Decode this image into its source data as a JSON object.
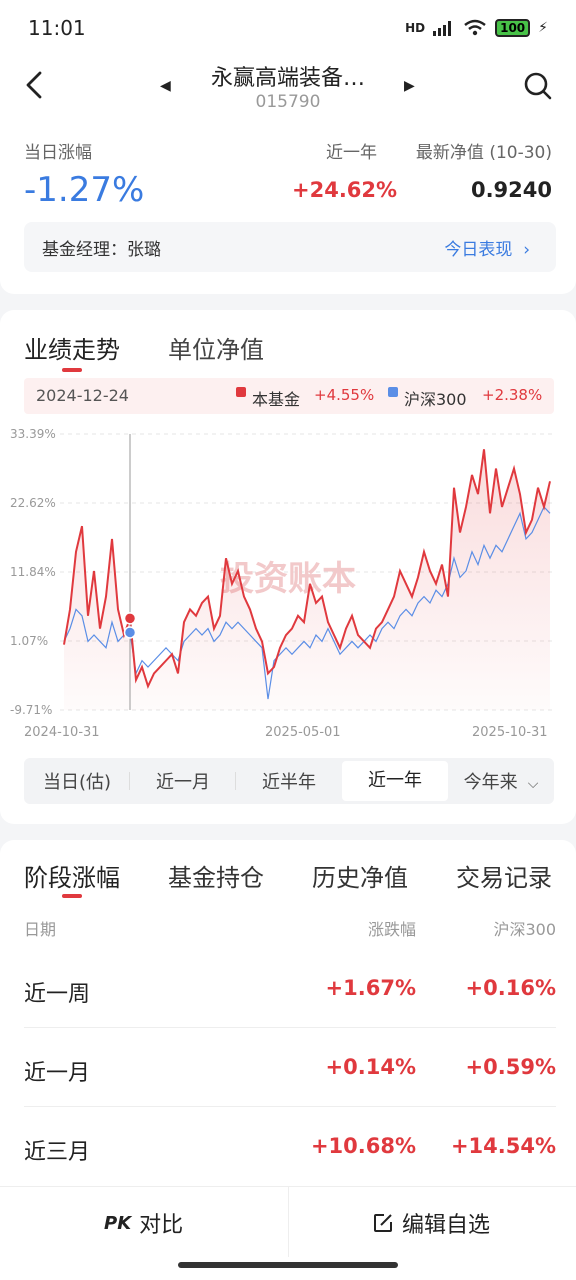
{
  "status": {
    "time": "11:01",
    "signal": "HD",
    "battery": "100"
  },
  "header": {
    "title": "永赢高端装备…",
    "code": "015790"
  },
  "summary": {
    "daily_label": "当日涨幅",
    "daily_value": "-1.27%",
    "year_label": "近一年",
    "year_value": "+24.62%",
    "nav_label": "最新净值 (10-30)",
    "nav_value": "0.9240",
    "manager": "基金经理：张璐",
    "today_link": "今日表现"
  },
  "chart_tabs": [
    "业绩走势",
    "单位净值"
  ],
  "legend": {
    "date": "2024-12-24",
    "fund_label": "本基金",
    "fund_value": "+4.55%",
    "index_label": "沪深300",
    "index_value": "+2.38%"
  },
  "watermark": "投资账本",
  "colors": {
    "fund": "#e0393e",
    "index": "#5b8ee6",
    "accent": "#3a7be0"
  },
  "chart_data": {
    "type": "line",
    "x_tick_labels": [
      "2024-10-31",
      "2025-05-01",
      "2025-10-31"
    ],
    "y_tick_labels": [
      "33.39%",
      "22.62%",
      "11.84%",
      "1.07%",
      "-9.71%"
    ],
    "ylim": [
      -9.71,
      33.39
    ],
    "grid": true,
    "series": [
      {
        "name": "本基金",
        "values": [
          0.5,
          6,
          15,
          19,
          5,
          12,
          3,
          8,
          17,
          6,
          2,
          4.6,
          -5,
          -3,
          -6,
          -4,
          -3,
          -2,
          -1,
          -4,
          4,
          6,
          5,
          7,
          8,
          3,
          5,
          14,
          10,
          12,
          8,
          6,
          3,
          1,
          -4,
          -3,
          0,
          2,
          3,
          5,
          4,
          10,
          7,
          8,
          4,
          2,
          0,
          3,
          5,
          2,
          1,
          0,
          3,
          4,
          6,
          8,
          12,
          10,
          8,
          11,
          15,
          12,
          10,
          13,
          8,
          25,
          18,
          22,
          27,
          24,
          31,
          21,
          28,
          22,
          25,
          28,
          24,
          18,
          20,
          25,
          22,
          26
        ]
      },
      {
        "name": "沪深300",
        "values": [
          1,
          3,
          6,
          5,
          1,
          2,
          1,
          0,
          4,
          1,
          2,
          2.4,
          -4,
          -2,
          -3,
          -2,
          -1,
          0,
          -1,
          -2,
          1,
          2,
          3,
          2,
          3,
          1,
          2,
          4,
          3,
          4,
          3,
          2,
          1,
          0,
          -8,
          -2,
          -1,
          0,
          -1,
          0,
          1,
          0,
          2,
          1,
          3,
          1,
          -1,
          0,
          1,
          0,
          1,
          2,
          1,
          3,
          4,
          3,
          5,
          6,
          5,
          7,
          8,
          7,
          9,
          8,
          10,
          14,
          11,
          12,
          15,
          13,
          16,
          14,
          16,
          15,
          17,
          19,
          21,
          17,
          18,
          20,
          22,
          21
        ]
      }
    ]
  },
  "ranges": [
    "当日(估)",
    "近一月",
    "近半年",
    "近一年",
    "今年来"
  ],
  "perf_tabs": [
    "阶段涨幅",
    "基金持仓",
    "历史净值",
    "交易记录"
  ],
  "table": {
    "headers": [
      "日期",
      "涨跌幅",
      "沪深300"
    ],
    "rows": [
      {
        "label": "近一周",
        "change": "+1.67%",
        "index": "+0.16%"
      },
      {
        "label": "近一月",
        "change": "+0.14%",
        "index": "+0.59%"
      },
      {
        "label": "近三月",
        "change": "+10.68%",
        "index": "+14.54%"
      }
    ]
  },
  "bottom": {
    "compare": "对比",
    "compare_icon": "PK",
    "edit": "编辑自选"
  }
}
